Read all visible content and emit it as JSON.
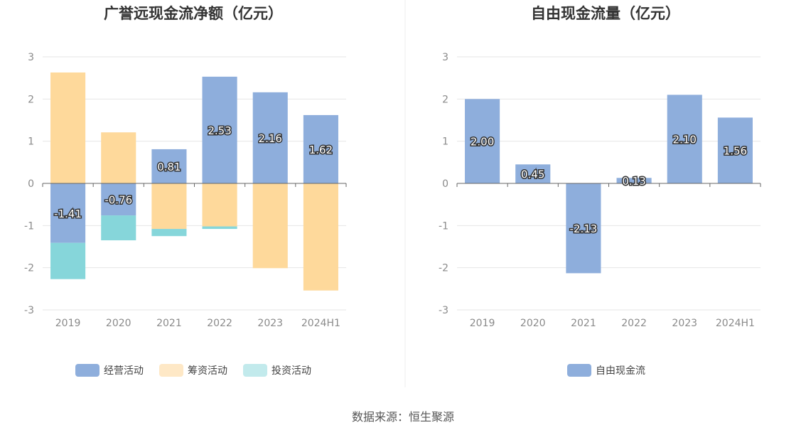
{
  "chart_data": [
    {
      "type": "bar",
      "stacked": true,
      "title": "广誉远现金流净额（亿元）",
      "categories": [
        "2019",
        "2020",
        "2021",
        "2022",
        "2023",
        "2024H1"
      ],
      "ylim": [
        -3,
        3
      ],
      "yticks": [
        3,
        2,
        1,
        0,
        -1,
        -2,
        -3
      ],
      "grid": true,
      "legend_position": "bottom",
      "series": [
        {
          "name": "经营活动",
          "color": "#8eaedc",
          "values": [
            -1.41,
            -0.76,
            0.81,
            2.53,
            2.16,
            1.62
          ],
          "labels": [
            "-1.41",
            "-0.76",
            "0.81",
            "2.53",
            "2.16",
            "1.62"
          ]
        },
        {
          "name": "筹资活动",
          "color": "#fed99b",
          "values": [
            2.63,
            1.21,
            -1.08,
            -1.02,
            -2.01,
            -2.54
          ]
        },
        {
          "name": "投资活动",
          "color": "#86d6da",
          "values": [
            -0.86,
            -0.59,
            -0.17,
            -0.06,
            0.0,
            0.0
          ]
        }
      ]
    },
    {
      "type": "bar",
      "title": "自由现金流量（亿元）",
      "categories": [
        "2019",
        "2020",
        "2021",
        "2022",
        "2023",
        "2024H1"
      ],
      "ylim": [
        -3,
        3
      ],
      "yticks": [
        3,
        2,
        1,
        0,
        -1,
        -2,
        -3
      ],
      "grid": true,
      "legend_position": "bottom",
      "series": [
        {
          "name": "自由现金流",
          "color": "#8eaedc",
          "values": [
            2.0,
            0.45,
            -2.13,
            0.13,
            2.1,
            1.56
          ],
          "labels": [
            "2.00",
            "0.45",
            "-2.13",
            "0.13",
            "2.10",
            "1.56"
          ]
        }
      ]
    }
  ],
  "legend_colors": {
    "经营活动": "#8eaedc",
    "筹资活动": "#fee8c6",
    "投资活动": "#c2eaec",
    "自由现金流": "#8eaedc"
  },
  "source_text": "数据来源：恒生聚源"
}
